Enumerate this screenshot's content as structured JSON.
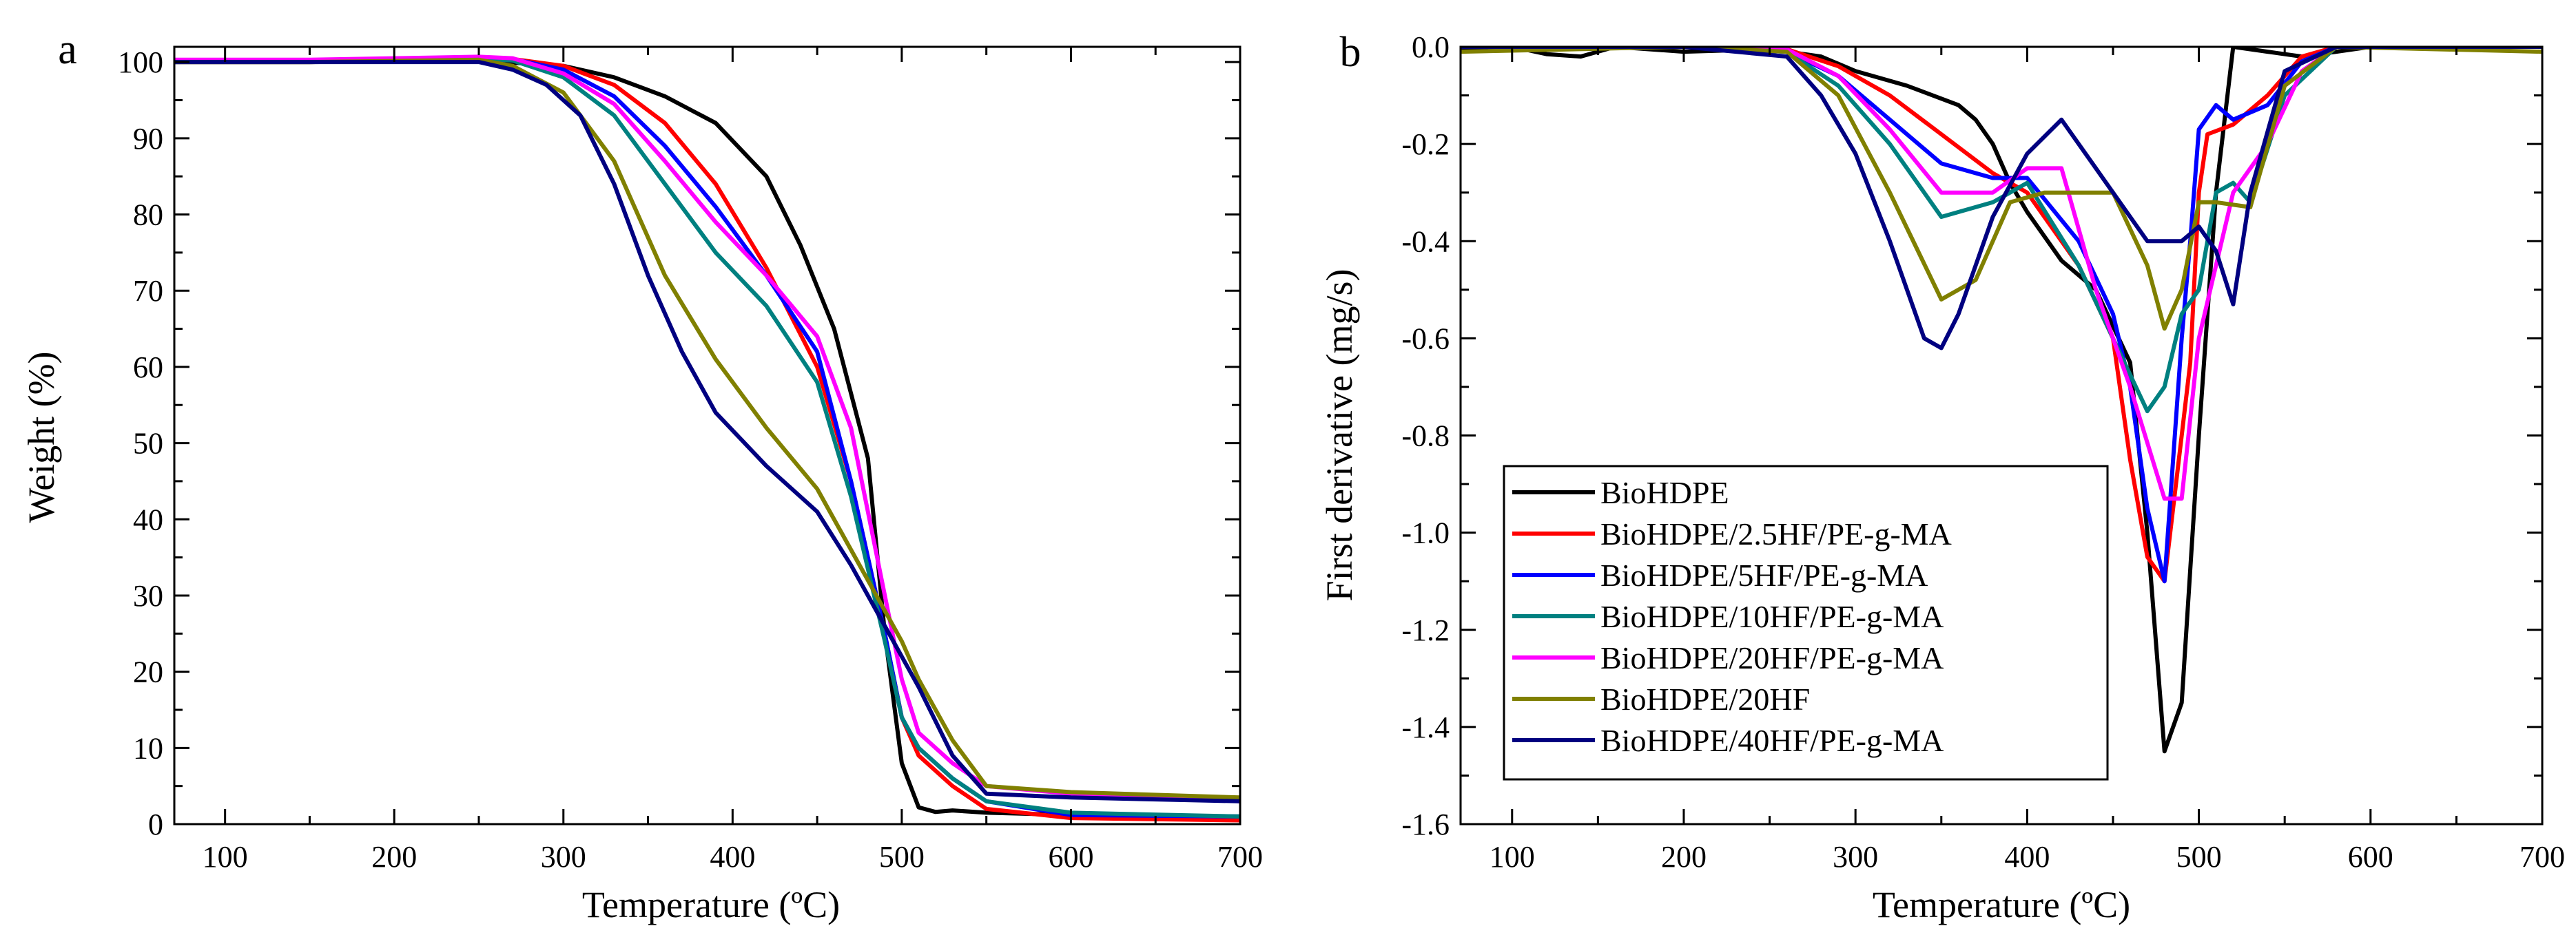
{
  "figure": {
    "panels": [
      "a",
      "b"
    ]
  },
  "chart_data": [
    {
      "type": "line",
      "panel_label": "a",
      "title": "",
      "xlabel": "Temperature (ºC)",
      "ylabel": "Weight (%)",
      "xlim": [
        70,
        700
      ],
      "ylim": [
        0,
        102
      ],
      "xticks": [
        100,
        200,
        300,
        400,
        500,
        600,
        700
      ],
      "yticks": [
        0,
        10,
        20,
        30,
        40,
        50,
        60,
        70,
        80,
        90,
        100
      ],
      "grid": false,
      "legend": "none",
      "series": [
        {
          "name": "BioHDPE",
          "color": "#000000",
          "x": [
            70,
            150,
            250,
            300,
            330,
            360,
            390,
            420,
            440,
            460,
            480,
            490,
            500,
            510,
            520,
            530,
            550,
            600,
            700
          ],
          "y": [
            100,
            100,
            100.2,
            99.5,
            98,
            95.5,
            92,
            85,
            76,
            65,
            48,
            25,
            8,
            2.2,
            1.6,
            1.8,
            1.5,
            1.2,
            1
          ]
        },
        {
          "name": "BioHDPE/2.5HF/PE-g-MA",
          "color": "#ff0000",
          "x": [
            70,
            150,
            250,
            270,
            300,
            330,
            360,
            390,
            420,
            450,
            470,
            490,
            500,
            510,
            530,
            550,
            600,
            700
          ],
          "y": [
            100,
            100,
            100.3,
            100.4,
            99.5,
            97,
            92,
            84,
            73,
            60,
            45,
            25,
            14,
            9,
            5,
            2,
            0.8,
            0.5
          ]
        },
        {
          "name": "BioHDPE/5HF/PE-g-MA",
          "color": "#0000ff",
          "x": [
            70,
            150,
            250,
            270,
            300,
            330,
            360,
            390,
            420,
            450,
            470,
            490,
            500,
            510,
            530,
            550,
            600,
            700
          ],
          "y": [
            100,
            100.2,
            100.6,
            100.4,
            99,
            95.5,
            89,
            81,
            72,
            62,
            45,
            25,
            14,
            10,
            6,
            3,
            1.2,
            1
          ]
        },
        {
          "name": "BioHDPE/10HF/PE-g-MA",
          "color": "#008080",
          "x": [
            70,
            150,
            250,
            270,
            300,
            330,
            360,
            390,
            420,
            450,
            470,
            490,
            500,
            510,
            530,
            550,
            600,
            700
          ],
          "y": [
            100,
            100,
            100.4,
            100.2,
            98,
            93,
            84,
            75,
            68,
            58,
            43,
            24,
            14,
            10,
            6,
            3,
            1.5,
            1
          ]
        },
        {
          "name": "BioHDPE/20HF/PE-g-MA",
          "color": "#ff00ff",
          "x": [
            70,
            150,
            250,
            270,
            300,
            330,
            360,
            390,
            420,
            450,
            470,
            490,
            500,
            510,
            530,
            550,
            600,
            700
          ],
          "y": [
            100.3,
            100.3,
            100.7,
            100.5,
            98.5,
            94.5,
            87,
            79,
            72,
            64,
            52,
            30,
            19,
            12,
            8,
            5,
            4,
            3
          ]
        },
        {
          "name": "BioHDPE/20HF",
          "color": "#808000",
          "x": [
            70,
            150,
            250,
            270,
            300,
            330,
            360,
            390,
            420,
            450,
            470,
            490,
            500,
            510,
            530,
            550,
            600,
            700
          ],
          "y": [
            100,
            100,
            100.3,
            99.5,
            96,
            87,
            72,
            61,
            52,
            44,
            36,
            28,
            24,
            19,
            11,
            5,
            4.2,
            3.5
          ]
        },
        {
          "name": "BioHDPE/40HF/PE-g-MA",
          "color": "#000080",
          "x": [
            70,
            150,
            250,
            270,
            290,
            310,
            330,
            350,
            370,
            390,
            420,
            450,
            470,
            490,
            510,
            530,
            550,
            600,
            700
          ],
          "y": [
            100,
            100,
            100,
            99,
            97,
            93,
            84,
            72,
            62,
            54,
            47,
            41,
            34,
            26,
            18,
            9,
            4,
            3.5,
            3
          ]
        }
      ]
    },
    {
      "type": "line",
      "panel_label": "b",
      "title": "",
      "xlabel": "Temperature (ºC)",
      "ylabel": "First derivative (mg/s)",
      "xlim": [
        70,
        700
      ],
      "ylim": [
        -1.6,
        0.0
      ],
      "xticks": [
        100,
        200,
        300,
        400,
        500,
        600,
        700
      ],
      "yticks": [
        0.0,
        -0.2,
        -0.4,
        -0.6,
        -0.8,
        -1.0,
        -1.2,
        -1.4,
        -1.6
      ],
      "ytick_labels": [
        "0.0",
        "-0.2",
        "-0.4",
        "-0.6",
        "-0.8",
        "-1.0",
        "-1.2",
        "-1.4",
        "-1.6"
      ],
      "grid": false,
      "legend": "bottom-left",
      "series": [
        {
          "name": "BioHDPE",
          "color": "#000000",
          "x": [
            70,
            100,
            120,
            140,
            160,
            200,
            250,
            280,
            300,
            330,
            360,
            370,
            380,
            390,
            400,
            420,
            440,
            460,
            470,
            480,
            490,
            500,
            510,
            520,
            540,
            560,
            580,
            600,
            700
          ],
          "y": [
            -0.005,
            0,
            -0.015,
            -0.02,
            0,
            -0.01,
            -0.005,
            -0.02,
            -0.05,
            -0.08,
            -0.12,
            -0.15,
            -0.2,
            -0.28,
            -0.34,
            -0.44,
            -0.5,
            -0.65,
            -1.0,
            -1.45,
            -1.35,
            -0.8,
            -0.3,
            0,
            -0.01,
            -0.02,
            -0.01,
            0,
            0
          ]
        },
        {
          "name": "BioHDPE/2.5HF/PE-g-MA",
          "color": "#ff0000",
          "x": [
            70,
            200,
            260,
            290,
            320,
            350,
            380,
            400,
            430,
            450,
            460,
            470,
            480,
            490,
            495,
            500,
            505,
            520,
            540,
            560,
            580,
            700
          ],
          "y": [
            0,
            0,
            -0.005,
            -0.04,
            -0.1,
            -0.18,
            -0.26,
            -0.3,
            -0.45,
            -0.6,
            -0.85,
            -1.05,
            -1.1,
            -0.8,
            -0.65,
            -0.3,
            -0.18,
            -0.16,
            -0.1,
            -0.02,
            0,
            0
          ]
        },
        {
          "name": "BioHDPE/5HF/PE-g-MA",
          "color": "#0000ff",
          "x": [
            70,
            200,
            260,
            290,
            320,
            350,
            380,
            400,
            430,
            450,
            460,
            470,
            480,
            490,
            495,
            500,
            510,
            520,
            540,
            560,
            580,
            700
          ],
          "y": [
            0,
            0,
            -0.01,
            -0.06,
            -0.15,
            -0.24,
            -0.27,
            -0.27,
            -0.4,
            -0.55,
            -0.7,
            -0.95,
            -1.1,
            -0.6,
            -0.4,
            -0.17,
            -0.12,
            -0.15,
            -0.12,
            -0.03,
            0,
            0
          ]
        },
        {
          "name": "BioHDPE/10HF/PE-g-MA",
          "color": "#008080",
          "x": [
            70,
            200,
            260,
            290,
            320,
            350,
            380,
            400,
            430,
            450,
            470,
            480,
            490,
            500,
            510,
            520,
            530,
            550,
            580,
            700
          ],
          "y": [
            0,
            0,
            -0.01,
            -0.08,
            -0.2,
            -0.35,
            -0.32,
            -0.28,
            -0.45,
            -0.6,
            -0.75,
            -0.7,
            -0.55,
            -0.5,
            -0.3,
            -0.28,
            -0.32,
            -0.1,
            0,
            0
          ]
        },
        {
          "name": "BioHDPE/20HF/PE-g-MA",
          "color": "#ff00ff",
          "x": [
            70,
            200,
            260,
            290,
            320,
            350,
            380,
            400,
            420,
            440,
            460,
            480,
            490,
            500,
            510,
            520,
            540,
            560,
            580,
            700
          ],
          "y": [
            0,
            0,
            -0.005,
            -0.06,
            -0.17,
            -0.3,
            -0.3,
            -0.25,
            -0.25,
            -0.5,
            -0.7,
            -0.93,
            -0.93,
            -0.6,
            -0.45,
            -0.3,
            -0.2,
            -0.05,
            0,
            0
          ]
        },
        {
          "name": "BioHDPE/20HF",
          "color": "#808000",
          "x": [
            70,
            200,
            260,
            290,
            320,
            350,
            370,
            390,
            410,
            430,
            450,
            470,
            480,
            490,
            500,
            510,
            530,
            550,
            580,
            700
          ],
          "y": [
            -0.01,
            0,
            -0.01,
            -0.1,
            -0.3,
            -0.52,
            -0.48,
            -0.32,
            -0.3,
            -0.3,
            -0.3,
            -0.45,
            -0.58,
            -0.5,
            -0.32,
            -0.32,
            -0.33,
            -0.08,
            0,
            -0.01
          ]
        },
        {
          "name": "BioHDPE/40HF/PE-g-MA",
          "color": "#000080",
          "x": [
            70,
            200,
            260,
            280,
            300,
            320,
            340,
            350,
            360,
            380,
            400,
            420,
            440,
            460,
            470,
            480,
            490,
            500,
            510,
            520,
            530,
            550,
            580,
            700
          ],
          "y": [
            0,
            0,
            -0.02,
            -0.1,
            -0.22,
            -0.4,
            -0.6,
            -0.62,
            -0.55,
            -0.35,
            -0.22,
            -0.15,
            -0.25,
            -0.35,
            -0.4,
            -0.4,
            -0.4,
            -0.37,
            -0.42,
            -0.53,
            -0.3,
            -0.05,
            0,
            0
          ]
        }
      ]
    }
  ]
}
